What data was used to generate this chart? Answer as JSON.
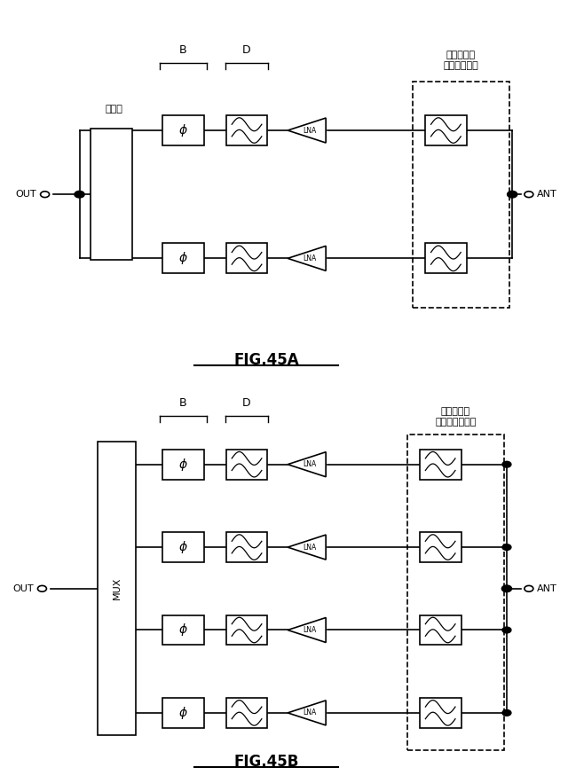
{
  "bg_color": "#ffffff",
  "line_color": "#000000",
  "fig45a": {
    "title": "FIG.45A",
    "label_coupler": "結合器",
    "label_filter_diplex": "フィルタ／\nダイプレクサ",
    "label_out": "OUT",
    "label_ant": "ANT",
    "label_B": "B",
    "label_D": "D",
    "rows": 2
  },
  "fig45b": {
    "title": "FIG.45B",
    "label_mux": "MUX",
    "label_filter_multiplex": "フィルタ／\nマルチプレクサ",
    "label_out": "OUT",
    "label_ant": "ANT",
    "label_B": "B",
    "label_D": "D",
    "rows": 4
  }
}
